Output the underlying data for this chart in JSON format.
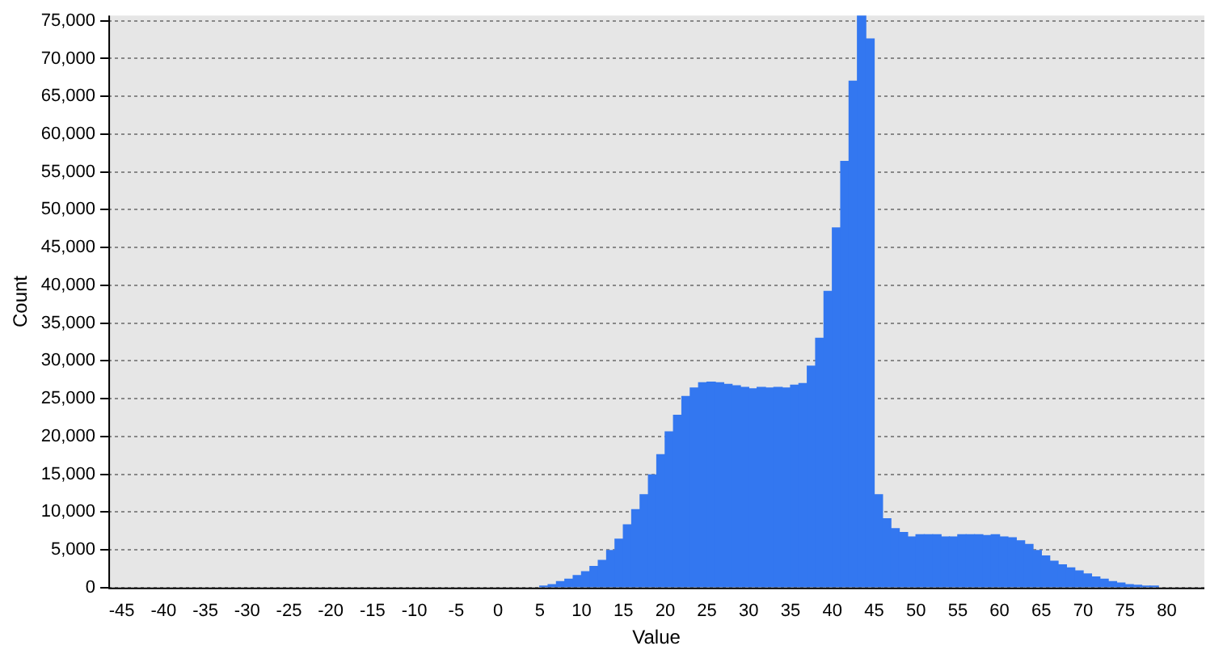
{
  "chart_data": {
    "type": "histogram",
    "xlabel": "Value",
    "ylabel": "Count",
    "bins": [
      5,
      6,
      7,
      8,
      9,
      10,
      11,
      12,
      13,
      14,
      15,
      16,
      17,
      18,
      19,
      20,
      21,
      22,
      23,
      24,
      25,
      26,
      27,
      28,
      29,
      30,
      31,
      32,
      33,
      34,
      35,
      36,
      37,
      38,
      39,
      40,
      41,
      42,
      43,
      44,
      45,
      46,
      47,
      48,
      49,
      50,
      51,
      52,
      53,
      54,
      55,
      56,
      57,
      58,
      59,
      60,
      61,
      62,
      63,
      64,
      65,
      66,
      67,
      68,
      69,
      70,
      71,
      72,
      73,
      74,
      75,
      76,
      77,
      78,
      79
    ],
    "values": [
      200,
      400,
      800,
      1100,
      1600,
      2100,
      2800,
      3600,
      4900,
      6400,
      8300,
      10300,
      12300,
      14900,
      17600,
      20600,
      22800,
      25300,
      26400,
      27100,
      27200,
      27100,
      26900,
      26700,
      26500,
      26300,
      26500,
      26400,
      26500,
      26400,
      26800,
      27000,
      29300,
      33000,
      39200,
      47600,
      56400,
      67000,
      75700,
      72600,
      12300,
      9100,
      7800,
      7300,
      6700,
      7000,
      7000,
      7000,
      6700,
      6700,
      7000,
      7000,
      7000,
      6900,
      7000,
      6700,
      6600,
      6200,
      5700,
      4900,
      4200,
      3500,
      3000,
      2600,
      2200,
      1800,
      1400,
      1100,
      800,
      600,
      400,
      300,
      200,
      200
    ],
    "color": "#3377f0",
    "xlim": [
      -46.6,
      84.5
    ],
    "xticks": [
      -45,
      -40,
      -35,
      -30,
      -25,
      -20,
      -15,
      -10,
      -5,
      0,
      5,
      10,
      15,
      20,
      25,
      30,
      35,
      40,
      45,
      50,
      55,
      60,
      65,
      70,
      75,
      80
    ],
    "ylim": [
      0,
      75700
    ],
    "yticks": [
      0,
      {
        "value": 5000,
        "label": "5,000"
      },
      {
        "value": 10000,
        "label": "10,000"
      },
      {
        "value": 15000,
        "label": "15,000"
      },
      {
        "value": 20000,
        "label": "20,000"
      },
      {
        "value": 25000,
        "label": "25,000"
      },
      {
        "value": 30000,
        "label": "30,000"
      },
      {
        "value": 35000,
        "label": "35,000"
      },
      {
        "value": 40000,
        "label": "40,000"
      },
      {
        "value": 45000,
        "label": "45,000"
      },
      {
        "value": 50000,
        "label": "50,000"
      },
      {
        "value": 55000,
        "label": "55,000"
      },
      {
        "value": 60000,
        "label": "60,000"
      },
      {
        "value": 65000,
        "label": "65,000"
      },
      {
        "value": 70000,
        "label": "70,000"
      },
      {
        "value": 75000,
        "label": "75,000"
      }
    ],
    "grid": "y",
    "legend": false
  }
}
